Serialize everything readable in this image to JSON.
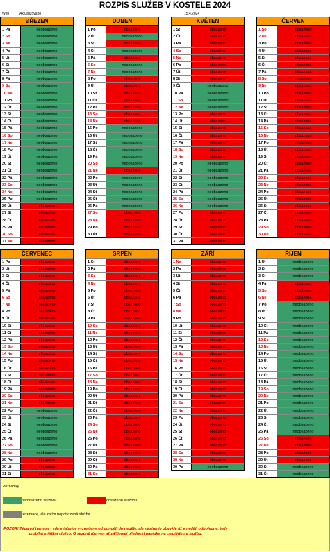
{
  "title": "ROZPIS SLUŽEB V KOSTELE 2024",
  "meta": {
    "web": "Web",
    "updated_label": "Aktualizováno",
    "date": "15.4.2024"
  },
  "status_labels": {
    "free": "neobsazeno",
    "busy": "obsazeno"
  },
  "colors": {
    "free": "#3a9e6a",
    "busy": "#f20000",
    "header": "#ff9900",
    "weekend": "#e00000"
  },
  "months": [
    {
      "name": "BŘEZEN",
      "start": 4,
      "days": 31,
      "status": "FFFFFFFFFFFFFFFFFFFFFFFFFBBBBBB",
      "weekend_sat": [
        2,
        9,
        16,
        23,
        30
      ],
      "weekend_sun": [
        3,
        10,
        17,
        24,
        31
      ]
    },
    {
      "name": "DUBEN",
      "start": 0,
      "days": 30,
      "status": "BFBFBFFBBBBBBBFFFFFFBFFFFFBBBB"
    },
    {
      "name": "KVĚTEN",
      "start": 2,
      "days": 31,
      "status": "BBBBBBBBFFFFBBBBBBBFFFFFFFBBBBB"
    },
    {
      "name": "ČERVEN",
      "start": 5,
      "days": 30,
      "status": "BBBBBBBBBBBBBBBBBBBBBBBBBBBBBB"
    },
    {
      "name": "ČERVENEC",
      "start": 0,
      "days": 31,
      "status": "BBBBBBBBBBBBBBBBBBBBBFFFFFFFBBB"
    },
    {
      "name": "SRPEN",
      "start": 3,
      "days": 31,
      "status": "BBBBBBBBBBBBBBBBBBBBBBBBBBBBBBB"
    },
    {
      "name": "ZÁŘÍ",
      "start": 6,
      "days": 30,
      "status": "BBBBBBBBBBBBBBBBBBBBBBBBBBBBBF"
    },
    {
      "name": "ŘÍJEN",
      "start": 1,
      "days": 31,
      "status": "FFFBBBFFFFFFFFFFFFFFFFFFFBBBBFF"
    }
  ],
  "dow": [
    "Po",
    "Út",
    "St",
    "Čt",
    "Pá",
    "So",
    "Ne"
  ],
  "legend": {
    "title": "Poznámky",
    "free": "neobsazeno službou",
    "busy": "obsazeno službou",
    "reserved": "rezervace, ale zatím nepotvrzená služba",
    "warning": "POZOR! Týdenní turnusy - zde v tabulce vyznačeny od pondělí do neděle, ale nástup je obvykle již v neděli odpoledne, tedy probíhá střídání služeb. O sezóně (červen až září) mají přednost nabídky na celotýdenní službu."
  }
}
